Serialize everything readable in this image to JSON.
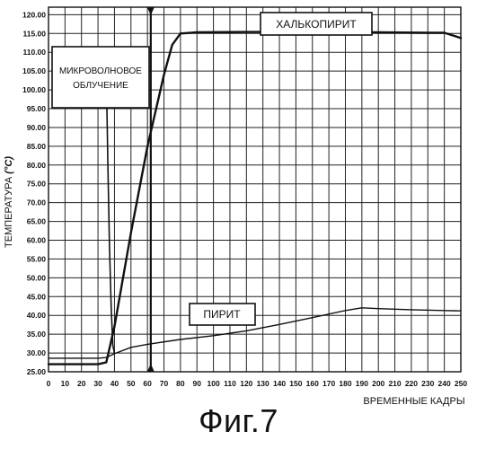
{
  "figure": {
    "caption": "Фиг.7"
  },
  "chart_data": {
    "type": "line",
    "title": "",
    "xlabel": "ВРЕМЕННЫЕ КАДРЫ",
    "ylabel": "ТЕМПЕРАТУРА (°C)",
    "ylabel_main": "ТЕМПЕРАТУРА ",
    "ylabel_unit": "(°C)",
    "xlim": [
      0,
      250
    ],
    "ylim": [
      25,
      122
    ],
    "x_ticks": [
      0,
      10,
      20,
      30,
      40,
      50,
      60,
      70,
      80,
      90,
      100,
      110,
      120,
      130,
      140,
      150,
      160,
      170,
      180,
      190,
      200,
      210,
      220,
      230,
      240,
      250
    ],
    "y_ticks": [
      25,
      30,
      35,
      40,
      45,
      50,
      55,
      60,
      65,
      70,
      75,
      80,
      85,
      90,
      95,
      100,
      105,
      110,
      115,
      120
    ],
    "y_tick_labels": [
      "25.00",
      "30.00",
      "35.00",
      "40.00",
      "45.00",
      "50.00",
      "55.00",
      "60.00",
      "65.00",
      "70.00",
      "75.00",
      "80.00",
      "85.00",
      "90.00",
      "95.00",
      "100.00",
      "105.00",
      "110.00",
      "115.00",
      "120.00"
    ],
    "grid": true,
    "series": [
      {
        "name": "ХАЛЬКОПИРИТ",
        "points": [
          [
            0,
            27
          ],
          [
            10,
            27
          ],
          [
            20,
            27
          ],
          [
            30,
            27
          ],
          [
            35,
            27.5
          ],
          [
            40,
            37
          ],
          [
            50,
            62
          ],
          [
            60,
            85
          ],
          [
            70,
            104
          ],
          [
            75,
            112
          ],
          [
            80,
            115
          ],
          [
            90,
            115.3
          ],
          [
            120,
            115.4
          ],
          [
            160,
            115.4
          ],
          [
            200,
            115.3
          ],
          [
            230,
            115.2
          ],
          [
            240,
            115.2
          ],
          [
            245,
            114.5
          ],
          [
            250,
            113.8
          ]
        ]
      },
      {
        "name": "ПИРИТ",
        "points": [
          [
            0,
            28.6
          ],
          [
            20,
            28.6
          ],
          [
            30,
            28.6
          ],
          [
            35,
            28.8
          ],
          [
            40,
            29.8
          ],
          [
            50,
            31.5
          ],
          [
            60,
            32.3
          ],
          [
            80,
            33.6
          ],
          [
            100,
            34.6
          ],
          [
            120,
            35.9
          ],
          [
            140,
            37.6
          ],
          [
            160,
            39.4
          ],
          [
            180,
            41.3
          ],
          [
            190,
            42
          ],
          [
            200,
            41.8
          ],
          [
            220,
            41.5
          ],
          [
            240,
            41.3
          ],
          [
            250,
            41.2
          ]
        ]
      },
      {
        "name": "",
        "points": [
          [
            35,
            105
          ],
          [
            36,
            80
          ],
          [
            37,
            58
          ],
          [
            38,
            42
          ],
          [
            39,
            32
          ],
          [
            40,
            30
          ]
        ]
      }
    ],
    "annotations": [
      {
        "text": "МИКРОВОЛНОВОЕ",
        "text2": "ОБЛУЧЕНИЕ"
      }
    ],
    "vertical_marker": {
      "x": 62
    }
  }
}
